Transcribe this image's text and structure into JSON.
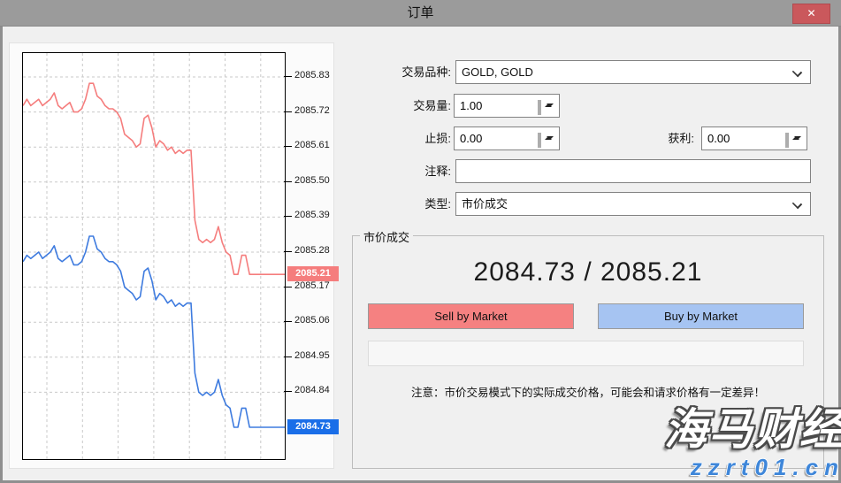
{
  "window": {
    "title": "订单",
    "close_glyph": "✕"
  },
  "form": {
    "symbol_label": "交易品种:",
    "symbol_value": "GOLD, GOLD",
    "volume_label": "交易量:",
    "volume_value": "1.00",
    "stoploss_label": "止损:",
    "stoploss_value": "0.00",
    "takeprofit_label": "获利:",
    "takeprofit_value": "0.00",
    "comment_label": "注释:",
    "comment_value": "",
    "type_label": "类型:",
    "type_value": "市价成交"
  },
  "execution": {
    "group_label": "市价成交",
    "bid": "2084.73",
    "ask": "2085.21",
    "price_display": "2084.73 / 2085.21",
    "sell_label": "Sell by Market",
    "buy_label": "Buy by Market",
    "note": "注意：市价交易模式下的实际成交价格，可能会和请求价格有一定差异！"
  },
  "watermark": {
    "line1": "海马财经",
    "line2": "zzrt01.cn"
  },
  "colors": {
    "ask_line": "#f57d7d",
    "bid_line": "#3e7bdf",
    "ask_badge": "#f57d7d",
    "bid_badge": "#1a6ee8",
    "sell_button": "#f58181",
    "buy_button": "#a6c4f2",
    "titlebar": "#9b9b9b",
    "close_button": "#ca585c",
    "dialog_bg": "#f0f0f0"
  },
  "chart_data": {
    "type": "line",
    "title": "",
    "xlabel": "",
    "ylabel": "",
    "grid": true,
    "legend": "none",
    "axis_side": "right",
    "ylim": [
      2084.63,
      2085.905
    ],
    "yticks": [
      2085.83,
      2085.72,
      2085.61,
      2085.5,
      2085.39,
      2085.28,
      2085.17,
      2085.06,
      2084.95,
      2084.84
    ],
    "series": [
      {
        "name": "ask",
        "color": "#f57d7d",
        "badge_color": "#f57d7d",
        "current": 2085.21,
        "values": [
          2085.74,
          2085.76,
          2085.74,
          2085.75,
          2085.76,
          2085.74,
          2085.75,
          2085.76,
          2085.78,
          2085.74,
          2085.73,
          2085.74,
          2085.75,
          2085.72,
          2085.72,
          2085.73,
          2085.76,
          2085.81,
          2085.81,
          2085.77,
          2085.76,
          2085.74,
          2085.73,
          2085.73,
          2085.72,
          2085.7,
          2085.65,
          2085.64,
          2085.63,
          2085.61,
          2085.62,
          2085.7,
          2085.71,
          2085.67,
          2085.61,
          2085.63,
          2085.62,
          2085.6,
          2085.61,
          2085.59,
          2085.6,
          2085.59,
          2085.6,
          2085.6,
          2085.38,
          2085.32,
          2085.31,
          2085.32,
          2085.31,
          2085.32,
          2085.36,
          2085.31,
          2085.28,
          2085.27,
          2085.21,
          2085.21,
          2085.27,
          2085.27,
          2085.21,
          2085.21,
          2085.21,
          2085.21,
          2085.21,
          2085.21,
          2085.21,
          2085.21,
          2085.21,
          2085.21
        ]
      },
      {
        "name": "bid",
        "color": "#3e7bdf",
        "badge_color": "#1a6ee8",
        "current": 2084.73,
        "values": [
          2085.25,
          2085.27,
          2085.26,
          2085.27,
          2085.28,
          2085.26,
          2085.27,
          2085.28,
          2085.3,
          2085.26,
          2085.25,
          2085.26,
          2085.27,
          2085.24,
          2085.24,
          2085.25,
          2085.28,
          2085.33,
          2085.33,
          2085.29,
          2085.28,
          2085.26,
          2085.25,
          2085.25,
          2085.24,
          2085.22,
          2085.17,
          2085.16,
          2085.15,
          2085.13,
          2085.14,
          2085.22,
          2085.23,
          2085.19,
          2085.13,
          2085.15,
          2085.14,
          2085.12,
          2085.13,
          2085.11,
          2085.12,
          2085.11,
          2085.12,
          2085.12,
          2084.9,
          2084.84,
          2084.83,
          2084.84,
          2084.83,
          2084.84,
          2084.88,
          2084.83,
          2084.8,
          2084.79,
          2084.73,
          2084.73,
          2084.79,
          2084.79,
          2084.73,
          2084.73,
          2084.73,
          2084.73,
          2084.73,
          2084.73,
          2084.73,
          2084.73,
          2084.73,
          2084.73
        ]
      }
    ]
  }
}
